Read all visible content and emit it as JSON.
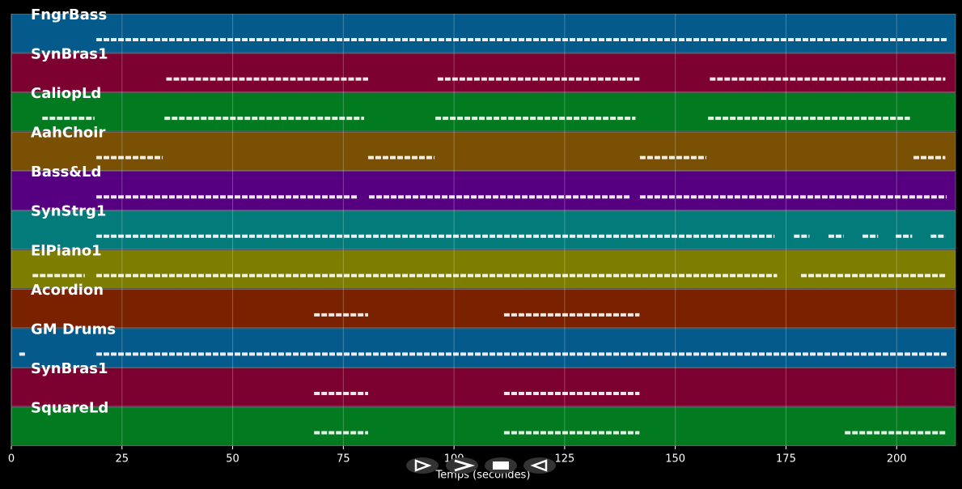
{
  "chart_data": {
    "type": "timeline",
    "xlabel": "Temps (secondes)",
    "xlim": [
      0,
      213.3
    ],
    "xticks": [
      0,
      25,
      50,
      75,
      100,
      125,
      150,
      175,
      200
    ],
    "grid": true,
    "tracks": [
      {
        "name": "FngrBass",
        "color": "#045b8b",
        "segments": [
          [
            19.2,
            211.3
          ]
        ]
      },
      {
        "name": "SynBras1",
        "color": "#7c0030",
        "segments": [
          [
            35,
            80.6
          ],
          [
            96.3,
            141.9
          ],
          [
            157.8,
            211
          ]
        ]
      },
      {
        "name": "CaliopLd",
        "color": "#017a20",
        "segments": [
          [
            7,
            18.8
          ],
          [
            34.6,
            79.7
          ],
          [
            95.8,
            141
          ],
          [
            157.4,
            203
          ]
        ]
      },
      {
        "name": "AahChoir",
        "color": "#7a5005",
        "segments": [
          [
            19.2,
            34.2
          ],
          [
            80.6,
            95.6
          ],
          [
            142,
            157
          ],
          [
            203.8,
            211
          ]
        ]
      },
      {
        "name": "Bass&Ld",
        "color": "#560081",
        "segments": [
          [
            19.2,
            78.2
          ],
          [
            80.8,
            139.7
          ],
          [
            142,
            211.3
          ]
        ]
      },
      {
        "name": "SynStrg1",
        "color": "#037b7b",
        "segments": [
          [
            19.2,
            172.4
          ],
          [
            176.8,
            180.3
          ],
          [
            184.6,
            188
          ],
          [
            192.3,
            195.8
          ],
          [
            199.8,
            203.5
          ],
          [
            207.7,
            211
          ]
        ]
      },
      {
        "name": "ElPiano1",
        "color": "#7d7d00",
        "segments": [
          [
            4.8,
            16.6
          ],
          [
            19.2,
            173
          ],
          [
            178.4,
            211
          ]
        ]
      },
      {
        "name": "Acordion",
        "color": "#7a2200",
        "segments": [
          [
            68.4,
            80.6
          ],
          [
            111.3,
            141.9
          ]
        ]
      },
      {
        "name": "GM Drums",
        "color": "#045b8b",
        "segments": [
          [
            1.8,
            3.1
          ],
          [
            19.2,
            211.3
          ]
        ]
      },
      {
        "name": "SynBras1",
        "color": "#7c0030",
        "segments": [
          [
            68.4,
            80.6
          ],
          [
            111.3,
            141.9
          ]
        ]
      },
      {
        "name": "SquareLd",
        "color": "#017a20",
        "segments": [
          [
            68.4,
            80.6
          ],
          [
            111.3,
            141.9
          ],
          [
            188.3,
            211.3
          ]
        ]
      }
    ]
  }
}
